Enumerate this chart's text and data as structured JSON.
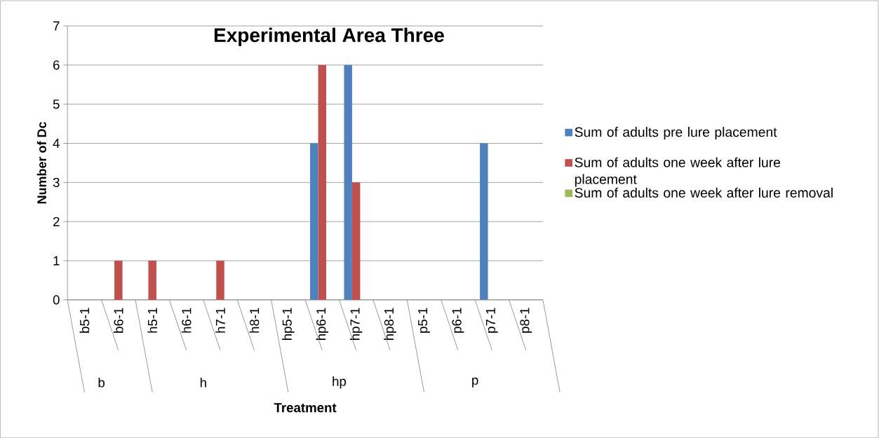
{
  "chart_data": {
    "type": "bar",
    "title": "Experimental Area Three",
    "xlabel": "Treatment",
    "ylabel": "Number of Dc",
    "categories": [
      "b5-1",
      "b6-1",
      "h5-1",
      "h6-1",
      "h7-1",
      "h8-1",
      "hp5-1",
      "hp6-1",
      "hp7-1",
      "hp8-1",
      "p5-1",
      "p6-1",
      "p7-1",
      "p8-1"
    ],
    "series": [
      {
        "name": "Sum of  adults pre lure placement",
        "color": "#4f81bd",
        "values": [
          0,
          0,
          0,
          0,
          0,
          0,
          0,
          4,
          6,
          0,
          0,
          0,
          4,
          0
        ]
      },
      {
        "name": "Sum of adults one week after lure placement",
        "color": "#c0504d",
        "values": [
          0,
          1,
          1,
          0,
          1,
          0,
          0,
          6,
          3,
          0,
          0,
          0,
          0,
          0
        ]
      },
      {
        "name": "Sum of adults one week after lure removal",
        "color": "#9bbb59",
        "values": [
          0,
          0,
          0,
          0,
          0,
          0,
          0,
          0,
          0,
          0,
          0,
          0,
          0,
          0
        ]
      }
    ],
    "ylim": [
      0,
      7
    ],
    "yticks": [
      0,
      1,
      2,
      3,
      4,
      5,
      6,
      7
    ],
    "grid": "y",
    "legend": "right",
    "annotations": [
      "b",
      "h",
      "hp",
      "p"
    ]
  }
}
